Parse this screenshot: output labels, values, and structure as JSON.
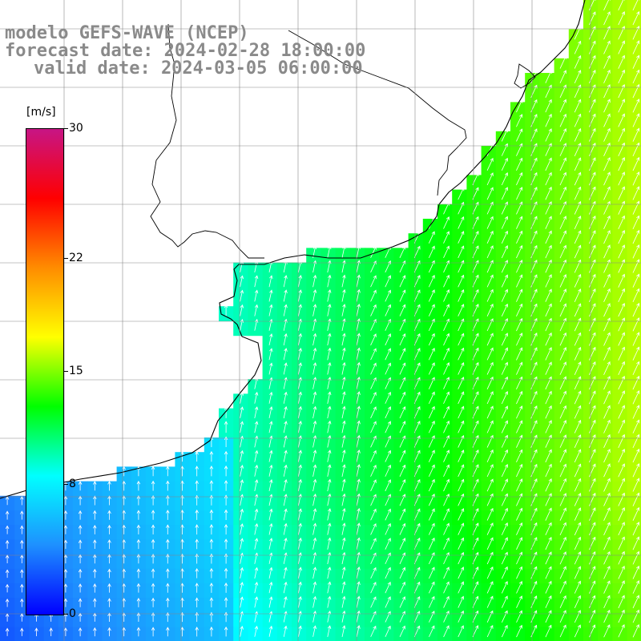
{
  "title": {
    "line1": "modelo GEFS-WAVE (NCEP)",
    "line2": "forecast date: 2024-02-28 18:00:00",
    "line3": "valid date: 2024-03-05 06:00:00"
  },
  "colorbar": {
    "unit": "[m/s]",
    "min": 0,
    "max": 30,
    "ticks": [
      "30",
      "22",
      "15",
      "8",
      "0"
    ],
    "tick_values": [
      30,
      22,
      15,
      8,
      0
    ],
    "colors": [
      "#0000ff",
      "#1e90ff",
      "#00ffff",
      "#00ff00",
      "#ffff00",
      "#ff8c00",
      "#ff0000",
      "#c71585"
    ]
  },
  "map": {
    "field": "wind speed",
    "grid_color": "#888888",
    "land_color": "#ffffff",
    "coast_color": "#000000",
    "arrow_color": "#ffffff"
  }
}
